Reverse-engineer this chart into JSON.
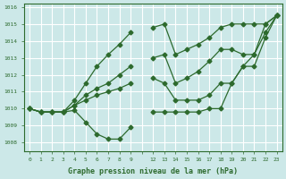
{
  "title": "Graphe pression niveau de la mer (hPa)",
  "bg_color": "#cce8e8",
  "grid_color": "#ffffff",
  "line_color": "#2d6a2d",
  "marker_color": "#2d6a2d",
  "xlabel": "Graphe pression niveau de la mer (hPa)",
  "ylim": [
    1007.5,
    1016.2
  ],
  "yticks": [
    1008,
    1009,
    1010,
    1011,
    1012,
    1013,
    1014,
    1015,
    1016
  ],
  "xticks_labels": [
    "0",
    "1",
    "2",
    "3",
    "4",
    "5",
    "6",
    "7",
    "8",
    "9",
    "",
    "12",
    "13",
    "14",
    "15",
    "16",
    "17",
    "18",
    "19",
    "20",
    "21",
    "22",
    "23"
  ],
  "lines": [
    [
      1010.0,
      1009.8,
      1009.8,
      1009.8,
      1009.9,
      1009.2,
      1008.5,
      1008.2,
      1008.2,
      1008.9,
      null,
      1009.8,
      1009.8,
      1009.8,
      1009.8,
      1009.8,
      1010.0,
      1010.0,
      1011.5,
      1012.5,
      1013.2,
      1015.0,
      1015.5
    ],
    [
      1010.0,
      1009.8,
      1009.8,
      1009.8,
      1010.2,
      1010.5,
      1010.8,
      1011.0,
      1011.2,
      1011.5,
      null,
      1011.8,
      1011.5,
      1010.5,
      1010.5,
      1010.5,
      1010.8,
      1011.5,
      1011.5,
      1012.5,
      1012.5,
      1014.2,
      1015.5
    ],
    [
      1010.0,
      1009.8,
      1009.8,
      1009.8,
      1010.2,
      1010.8,
      1011.2,
      1011.5,
      1012.0,
      1012.5,
      null,
      1013.0,
      1013.2,
      1011.5,
      1011.8,
      1012.2,
      1012.8,
      1013.5,
      1013.5,
      1013.2,
      1013.2,
      1014.5,
      1015.5
    ],
    [
      1010.0,
      1009.8,
      1009.8,
      1009.8,
      1010.5,
      1011.5,
      1012.5,
      1013.2,
      1013.8,
      1014.5,
      null,
      1014.8,
      1015.0,
      1013.2,
      1013.5,
      1013.8,
      1014.2,
      1014.8,
      1015.0,
      1015.0,
      1015.0,
      1015.0,
      1015.5
    ]
  ]
}
